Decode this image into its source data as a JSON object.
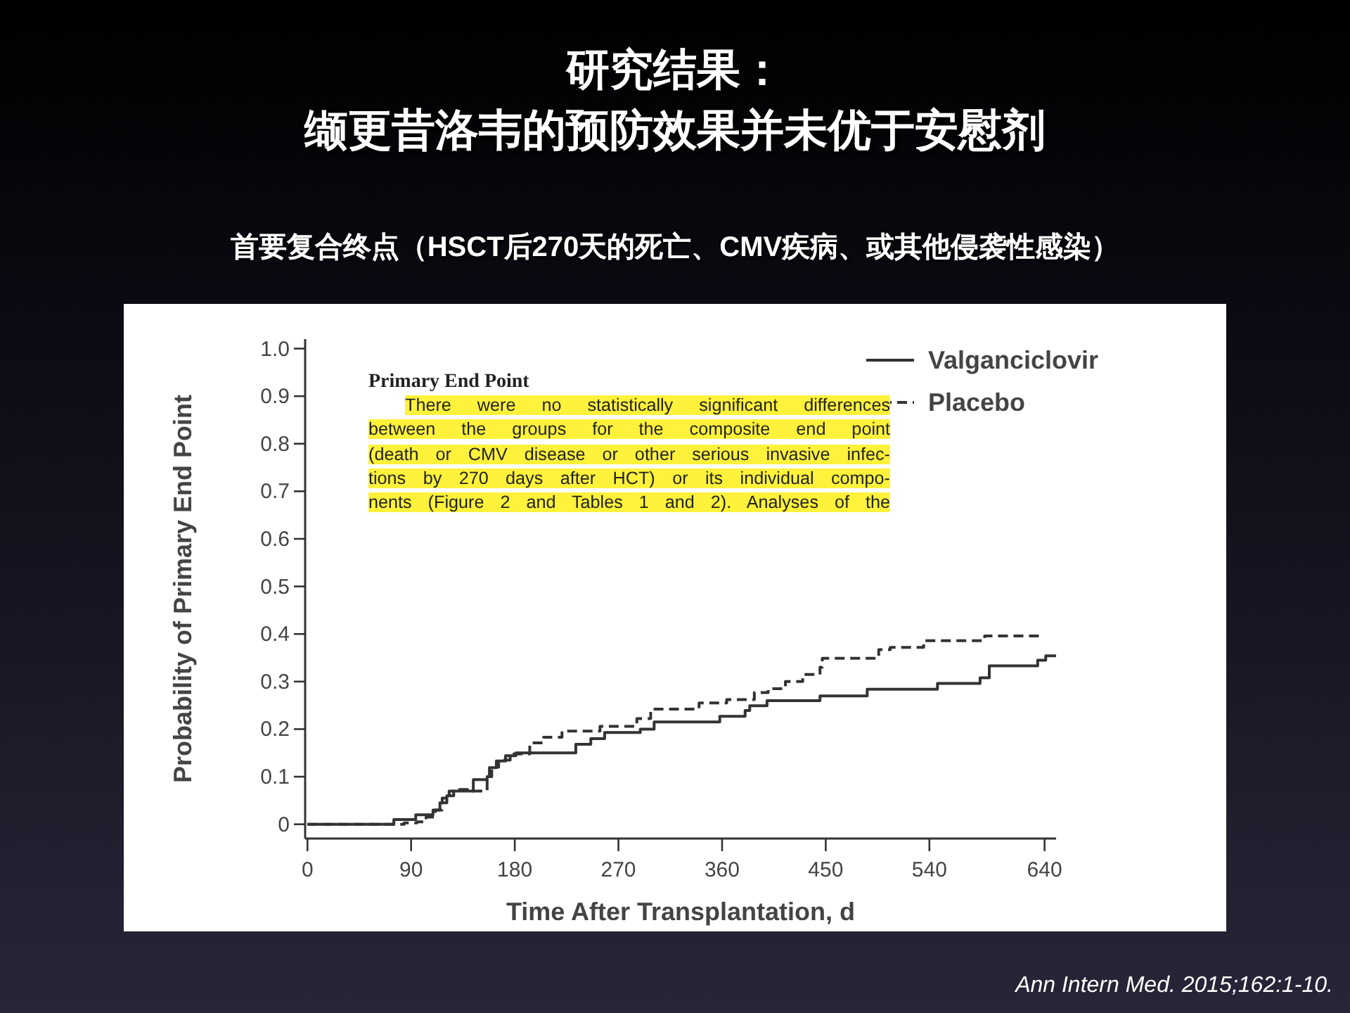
{
  "chart_data": {
    "type": "step",
    "title": "研究结果：",
    "subtitle": "缬更昔洛韦的预防效果并未优于安慰剂",
    "xlabel": "Time After Transplantation, d",
    "ylabel": "Probability of Primary End Point",
    "xlim": [
      -2,
      650
    ],
    "ylim": [
      -0.03,
      1.02
    ],
    "xticks": [
      0,
      90,
      180,
      270,
      360,
      450,
      540,
      640
    ],
    "yticks": [
      {
        "value": 0,
        "label": "0"
      },
      0.1,
      0.2,
      0.3,
      0.4,
      0.5,
      0.6,
      0.7,
      0.8,
      0.9,
      {
        "value": 1,
        "label": "1.0"
      }
    ],
    "legend": "top right",
    "series": [
      {
        "name": "Valganciclovir",
        "color": "#333333",
        "line_style": "solid",
        "x": [
          0,
          75,
          94,
          109,
          115,
          121,
          127,
          144,
          156,
          158,
          164,
          172,
          181,
          233,
          246,
          258,
          289,
          301,
          358,
          380,
          384,
          399,
          445,
          486,
          547,
          584,
          592,
          634,
          641,
          650
        ],
        "values": [
          0,
          0.01,
          0.02,
          0.03,
          0.045,
          0.06,
          0.07,
          0.094,
          0.1,
          0.119,
          0.133,
          0.144,
          0.15,
          0.168,
          0.18,
          0.193,
          0.2,
          0.215,
          0.227,
          0.239,
          0.249,
          0.26,
          0.27,
          0.284,
          0.296,
          0.308,
          0.333,
          0.345,
          0.354,
          0.354
        ]
      },
      {
        "name": "Placebo",
        "color": "#333333",
        "line_style": "dashed",
        "x": [
          0,
          84,
          95,
          103,
          111,
          117,
          123,
          132,
          139,
          156,
          160,
          166,
          176,
          193,
          205,
          221,
          254,
          286,
          298,
          340,
          364,
          388,
          400,
          415,
          430,
          445,
          447,
          496,
          506,
          535,
          588,
          639
        ],
        "values": [
          0,
          0.003,
          0.005,
          0.015,
          0.03,
          0.055,
          0.07,
          0.073,
          0.07,
          0.1,
          0.12,
          0.135,
          0.148,
          0.171,
          0.183,
          0.196,
          0.206,
          0.222,
          0.242,
          0.255,
          0.262,
          0.277,
          0.285,
          0.3,
          0.315,
          0.33,
          0.349,
          0.367,
          0.372,
          0.386,
          0.396,
          0.396
        ]
      }
    ],
    "annotations": [
      "首要复合终点（HSCT后270天的死亡、CMV疾病、或其他侵袭性感染）",
      "Primary End Point",
      "There were no statistically significant differences\nbetween the groups for the composite end point\n(death or CMV disease or other serious invasive infec-\ntions by 270 days after HCT) or its individual compo-\nnents (Figure 2 and Tables 1 and 2). Analyses of the",
      "Ann Intern Med. 2015;162:1-10."
    ]
  }
}
